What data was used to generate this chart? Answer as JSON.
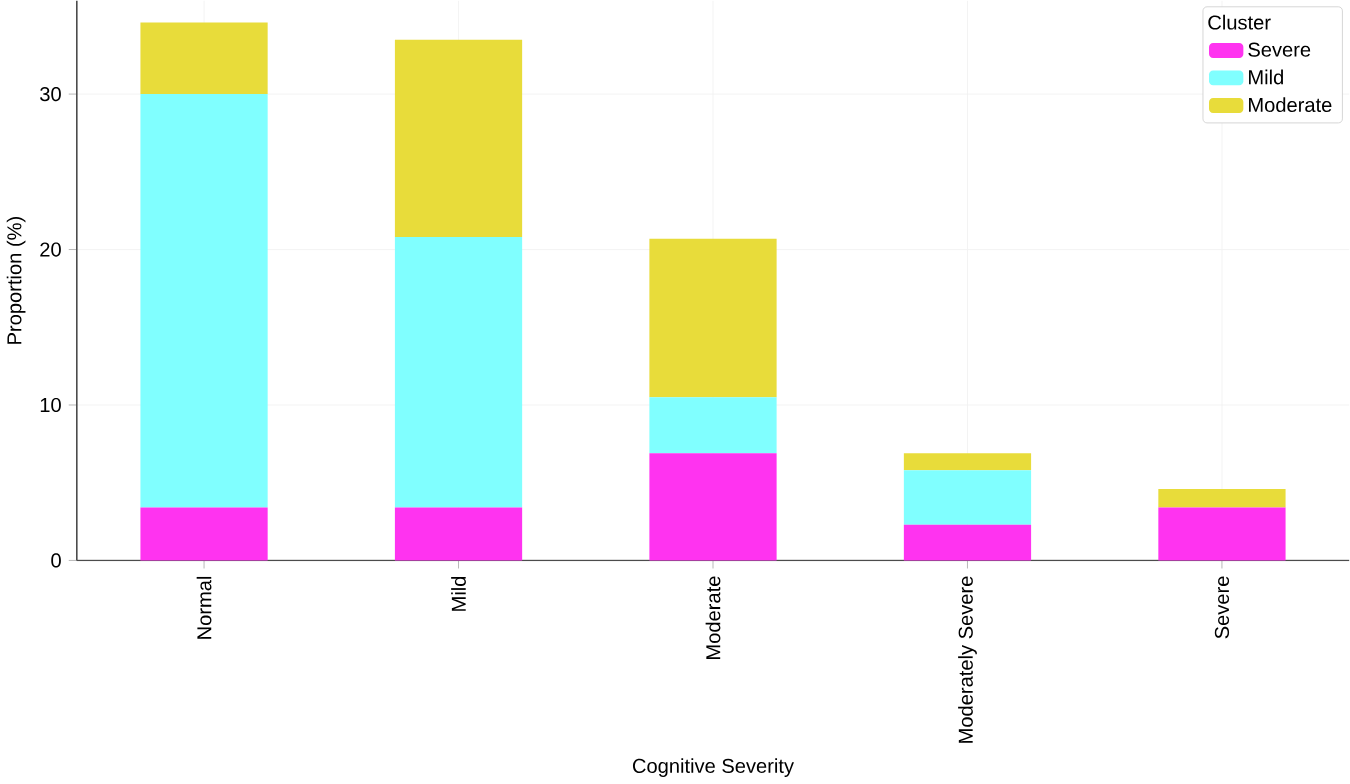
{
  "chart_data": {
    "type": "bar",
    "stacked": true,
    "xlabel": "Cognitive Severity",
    "ylabel": "Proportion (%)",
    "legend_title": "Cluster",
    "legend": "top right",
    "grid": true,
    "categories": [
      "Normal",
      "Mild",
      "Moderate",
      "Moderately Severe",
      "Severe"
    ],
    "ylim": [
      0,
      36
    ],
    "yticks": [
      0,
      10,
      20,
      30
    ],
    "series": [
      {
        "name": "Severe",
        "color": "#ff33f0",
        "values": [
          3.4,
          3.4,
          6.9,
          2.3,
          3.4
        ]
      },
      {
        "name": "Mild",
        "color": "#80ffff",
        "values": [
          26.6,
          17.4,
          3.6,
          3.5,
          0
        ]
      },
      {
        "name": "Moderate",
        "color": "#e8dc3a",
        "values": [
          4.6,
          12.7,
          10.2,
          1.1,
          1.2
        ]
      }
    ]
  }
}
